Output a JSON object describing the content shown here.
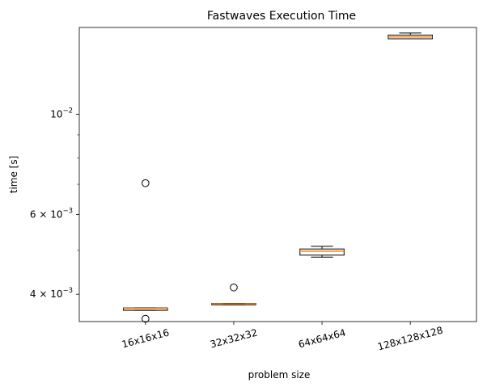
{
  "chart_data": {
    "type": "box",
    "title": "Fastwaves Execution Time",
    "xlabel": "problem size",
    "ylabel": "time [s]",
    "yscale": "log",
    "ylim": [
      0.00348,
      0.01555
    ],
    "categories": [
      "16x16x16",
      "32x32x32",
      "64x64x64",
      "128x128x128"
    ],
    "boxes": [
      {
        "whisker_low": 0.003685,
        "q1": 0.003685,
        "median": 0.00372,
        "q3": 0.00373,
        "whisker_high": 0.00373,
        "outliers": [
          0.00353,
          0.00704
        ]
      },
      {
        "whisker_low": 0.00379,
        "q1": 0.00379,
        "median": 0.003805,
        "q3": 0.003815,
        "whisker_high": 0.003815,
        "outliers": [
          0.00414
        ]
      },
      {
        "whisker_low": 0.00483,
        "q1": 0.00488,
        "median": 0.00498,
        "q3": 0.005035,
        "whisker_high": 0.005105,
        "outliers": []
      },
      {
        "whisker_low": 0.01468,
        "q1": 0.01468,
        "median": 0.01482,
        "q3": 0.01496,
        "whisker_high": 0.01512,
        "outliers": []
      }
    ],
    "yticks": [
      {
        "value": 0.01,
        "base": "10",
        "exp": "−2"
      },
      {
        "value": 0.006,
        "base": "6 × 10",
        "exp": "−3"
      },
      {
        "value": 0.004,
        "base": "4 × 10",
        "exp": "−3"
      }
    ],
    "yminorticks": [
      0.005,
      0.007,
      0.008,
      0.009
    ],
    "tick_label_rotation": 15,
    "colors": {
      "box": "#000000",
      "median": "#ff7f0e",
      "background": "#ffffff"
    },
    "grid": false,
    "legend": "none"
  }
}
